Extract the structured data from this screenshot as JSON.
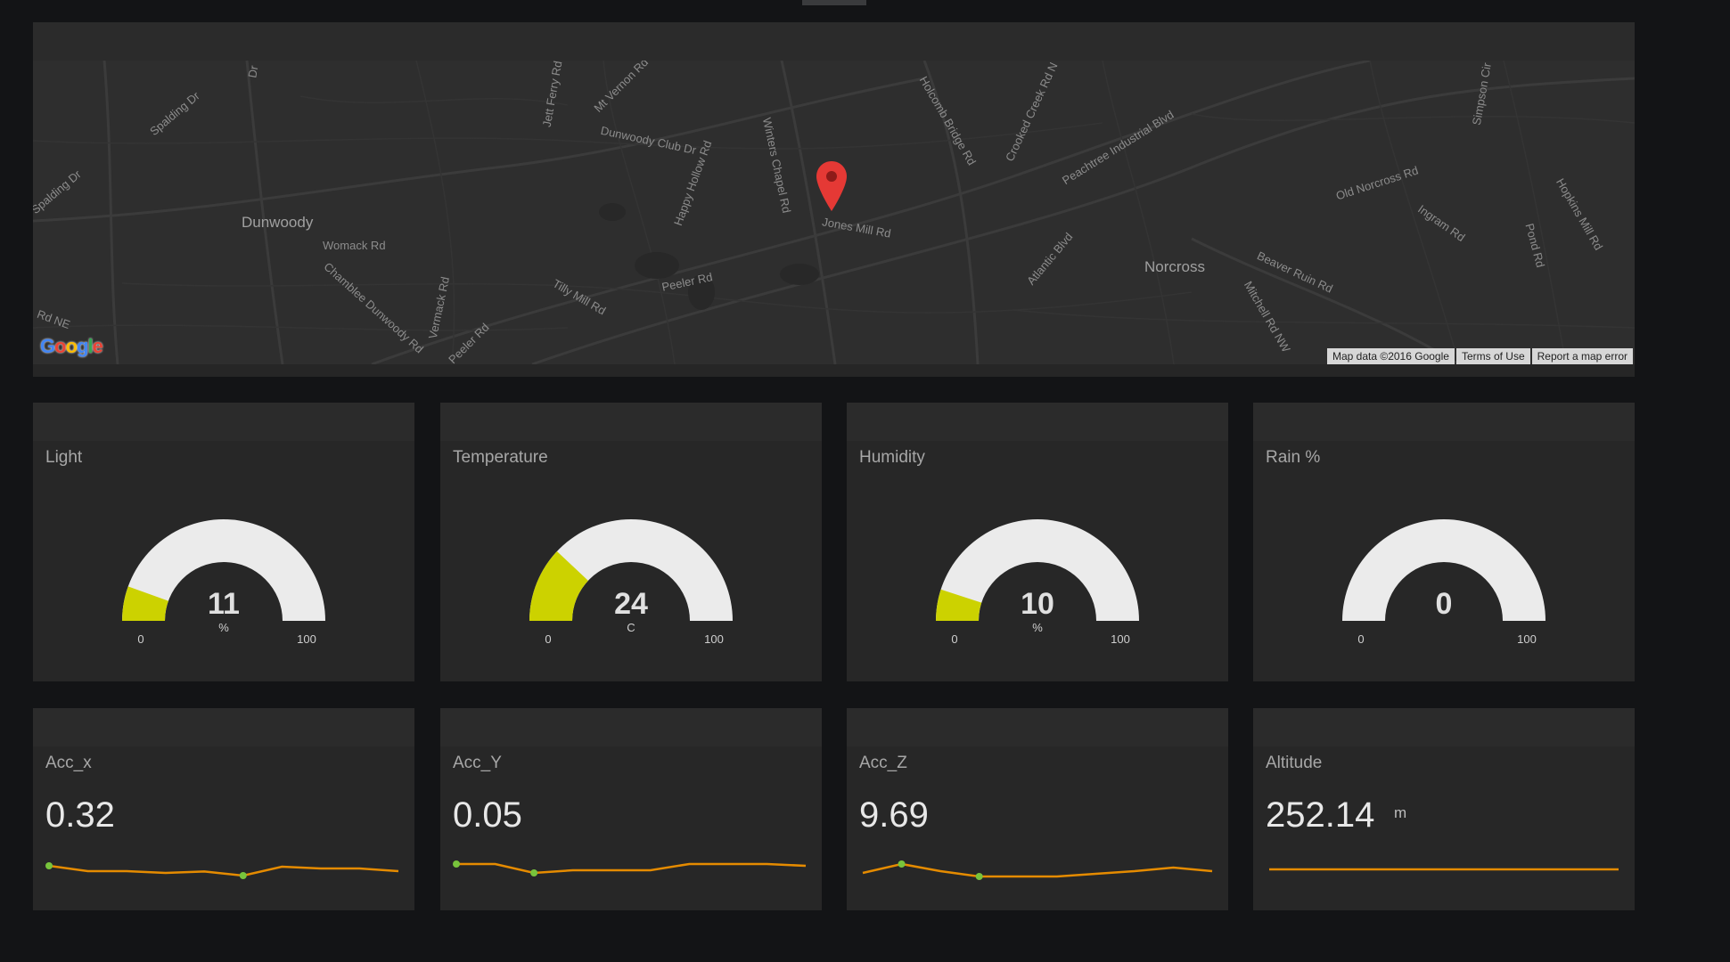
{
  "map": {
    "labels": {
      "dunwoody": "Dunwoody",
      "norcross": "Norcross",
      "womack": "Womack Rd",
      "dunwoody_club": "Dunwoody Club Dr",
      "jones_mill": "Jones Mill Rd",
      "peeler": "Peeler Rd",
      "tilly_mill": "Tilly Mill Rd",
      "chamblee": "Chamblee Dunwoody Rd",
      "vermack": "Vermack Rd",
      "winters": "Winters Chapel Rd",
      "happy_hollow": "Happy Hollow Rd",
      "holcomb": "Holcomb Bridge Rd",
      "crooked_creek": "Crooked Creek Rd N",
      "peachtree": "Peachtree Industrial Blvd",
      "atlantic": "Atlantic Blvd",
      "old_norcross": "Old Norcross Rd",
      "ingram": "Ingram Rd",
      "pond": "Pond Rd",
      "hopkins": "Hopkins Mill Rd",
      "beaver_ruin": "Beaver Ruin Rd",
      "mitchell": "Mitchell Rd NW",
      "spalding": "Spalding Dr",
      "spalding2": "Spalding Dr",
      "jett_ferry": "Jett Ferry Rd",
      "mt_vernon": "Mt Vernon Rd",
      "simpson": "Simpson Cir",
      "rd_ne": "Rd NE",
      "dr": "Dr",
      "peeler2": "Peeler Rd"
    },
    "logo": "Google",
    "attribution": [
      "Map data ©2016 Google",
      "Terms of Use",
      "Report a map error"
    ],
    "pin_color": "#e53935",
    "pin_icon": "map-marker-icon"
  },
  "gauges": [
    {
      "title": "Light",
      "value": "11",
      "unit": "%",
      "min": "0",
      "max": "100",
      "level": 11
    },
    {
      "title": "Temperature",
      "value": "24",
      "unit": "C",
      "min": "0",
      "max": "100",
      "level": 24
    },
    {
      "title": "Humidity",
      "value": "10",
      "unit": "%",
      "min": "0",
      "max": "100",
      "level": 10
    },
    {
      "title": "Rain %",
      "value": "0",
      "unit": "",
      "min": "0",
      "max": "100",
      "level": 0
    }
  ],
  "metrics": [
    {
      "title": "Acc_x",
      "value": "0.32",
      "unit": "",
      "spark": [
        0.6,
        0.3,
        0.3,
        0.2,
        0.28,
        0.05,
        0.55,
        0.45,
        0.45,
        0.3
      ],
      "markers": [
        0,
        5
      ]
    },
    {
      "title": "Acc_Y",
      "value": "0.05",
      "unit": "",
      "spark": [
        0.7,
        0.7,
        0.2,
        0.35,
        0.35,
        0.35,
        0.7,
        0.7,
        0.7,
        0.6
      ],
      "markers": [
        0,
        2
      ]
    },
    {
      "title": "Acc_Z",
      "value": "9.69",
      "unit": "",
      "spark": [
        0.2,
        0.7,
        0.3,
        0.0,
        0.0,
        0.0,
        0.15,
        0.3,
        0.5,
        0.3
      ],
      "markers": [
        1,
        3
      ]
    },
    {
      "title": "Altitude",
      "value": "252.14",
      "unit": "m",
      "spark": [
        0.4,
        0.4,
        0.4,
        0.4,
        0.4,
        0.4,
        0.4,
        0.4,
        0.4,
        0.4
      ],
      "markers": []
    }
  ],
  "colors": {
    "gauge_fill": "#ccd200",
    "gauge_track": "#ebebeb",
    "spark_line": "#e58b00",
    "spark_marker": "#78c43c"
  }
}
